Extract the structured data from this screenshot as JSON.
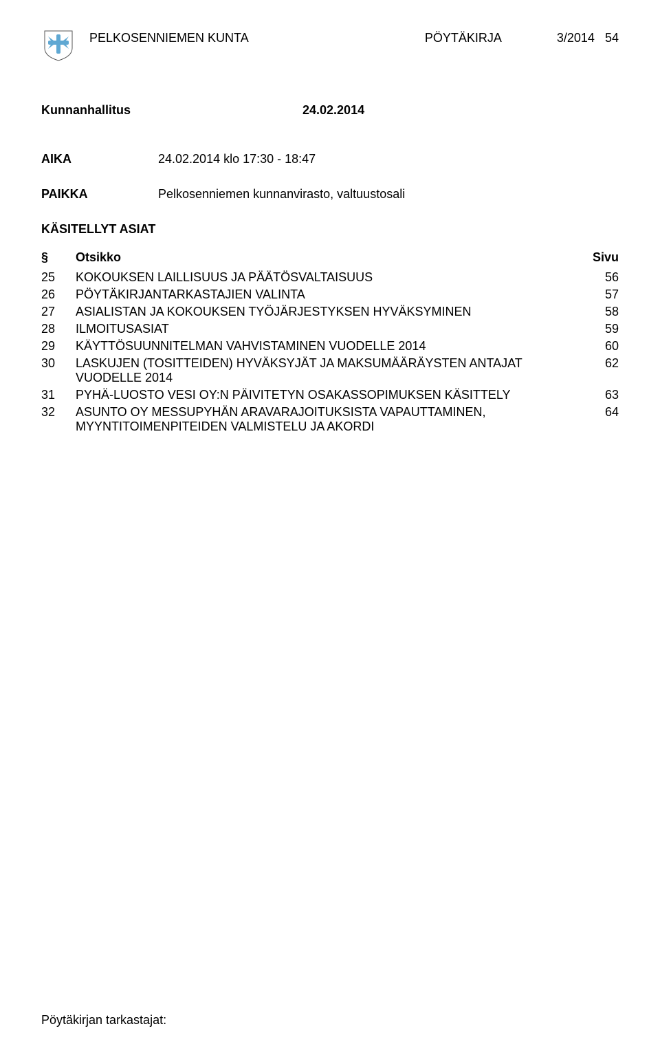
{
  "header": {
    "organization": "PELKOSENNIEMEN KUNTA",
    "documentType": "PÖYTÄKIRJA",
    "pageInfo": "3/2014",
    "pageNum": "54"
  },
  "logo": {
    "backgroundColor": "#ffffff",
    "shieldColor": "#ffffff",
    "shieldStroke": "#333333",
    "crossColor": "#5fa8d3"
  },
  "meeting": {
    "body": "Kunnanhallitus",
    "date": "24.02.2014"
  },
  "time": {
    "label": "AIKA",
    "value": "24.02.2014 klo 17:30 - 18:47"
  },
  "place": {
    "label": "PAIKKA",
    "value": "Pelkosenniemen kunnanvirasto, valtuustosali"
  },
  "agendaSection": {
    "title": "KÄSITELLYT ASIAT",
    "headerNum": "§",
    "headerTitle": "Otsikko",
    "headerPage": "Sivu"
  },
  "agendaItems": [
    {
      "num": "25",
      "title": "KOKOUKSEN LAILLISUUS JA PÄÄTÖSVALTAISUUS",
      "page": "56"
    },
    {
      "num": "26",
      "title": "PÖYTÄKIRJANTARKASTAJIEN VALINTA",
      "page": "57"
    },
    {
      "num": "27",
      "title": "ASIALISTAN JA KOKOUKSEN TYÖJÄRJESTYKSEN HYVÄKSYMINEN",
      "page": "58"
    },
    {
      "num": "28",
      "title": "ILMOITUSASIAT",
      "page": "59"
    },
    {
      "num": "29",
      "title": "KÄYTTÖSUUNNITELMAN VAHVISTAMINEN VUODELLE 2014",
      "page": "60"
    },
    {
      "num": "30",
      "title": "LASKUJEN (TOSITTEIDEN) HYVÄKSYJÄT JA MAKSUMÄÄRÄYSTEN ANTAJAT VUODELLE 2014",
      "page": "62"
    },
    {
      "num": "31",
      "title": "PYHÄ-LUOSTO VESI OY:N PÄIVITETYN OSAKASSOPIMUKSEN KÄSITTELY",
      "page": "63"
    },
    {
      "num": "32",
      "title": "ASUNTO OY MESSUPYHÄN ARAVARAJOITUKSISTA VAPAUTTAMINEN, MYYNTITOIMENPITEIDEN VALMISTELU JA AKORDI",
      "page": "64"
    }
  ],
  "footer": {
    "text": "Pöytäkirjan tarkastajat:"
  }
}
